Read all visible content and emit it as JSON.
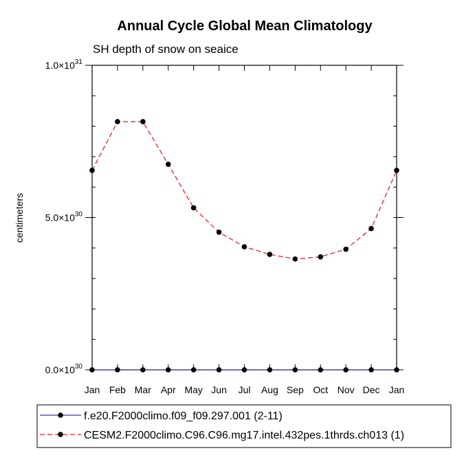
{
  "chart_data": {
    "type": "line",
    "title": "Annual Cycle Global Mean Climatology",
    "subtitle": "SH depth of snow on seaice",
    "xlabel": "",
    "ylabel": "centimeters",
    "categories": [
      "Jan",
      "Feb",
      "Mar",
      "Apr",
      "May",
      "Jun",
      "Jul",
      "Aug",
      "Sep",
      "Oct",
      "Nov",
      "Dec",
      "Jan"
    ],
    "ylim": [
      0,
      1e+31
    ],
    "yticks": [
      {
        "value": 0,
        "mantissa": "0.0",
        "exponent": "30"
      },
      {
        "value": 5e+30,
        "mantissa": "5.0",
        "exponent": "30"
      },
      {
        "value": 1e+31,
        "mantissa": "1.0",
        "exponent": "31"
      }
    ],
    "series": [
      {
        "name": "f.e20.F2000climo.f09_f09.297.001 (2-11)",
        "color": "#3333cc",
        "dash": "solid",
        "values": [
          0,
          0,
          0,
          0,
          0,
          0,
          0,
          0,
          0,
          0,
          0,
          0,
          0
        ]
      },
      {
        "name": "CESM2.F2000climo.C96.C96.mg17.intel.432pes.1thrds.ch013 (1)",
        "color": "#ee2222",
        "dash": "dashed",
        "values": [
          6.55e+30,
          8.15e+30,
          8.15e+30,
          6.75e+30,
          5.32e+30,
          4.52e+30,
          4.04e+30,
          3.79e+30,
          3.64e+30,
          3.71e+30,
          3.96e+30,
          4.64e+30,
          6.55e+30
        ]
      }
    ]
  }
}
